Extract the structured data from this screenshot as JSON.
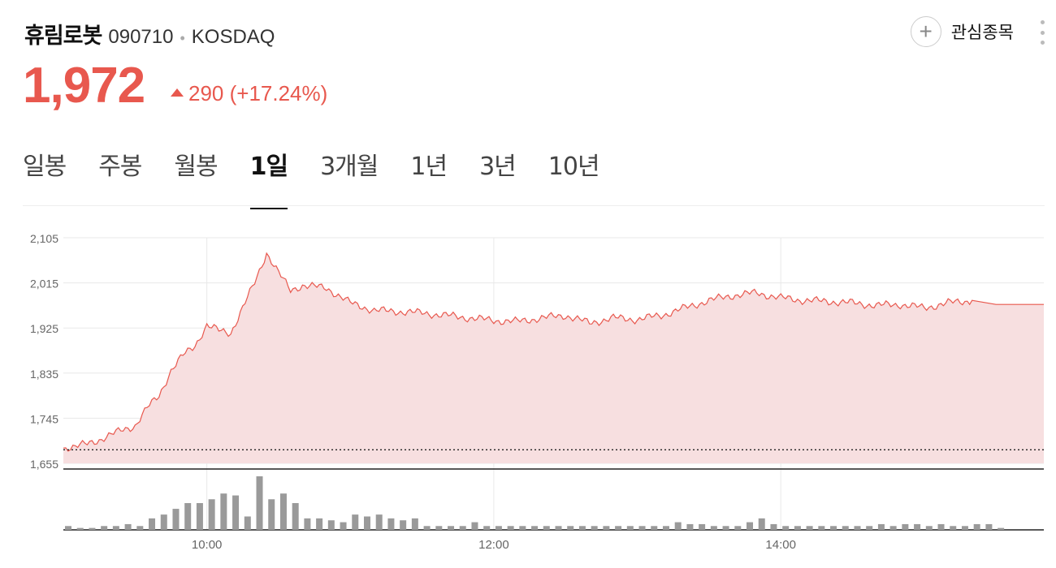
{
  "stock": {
    "name": "휴림로봇",
    "code": "090710",
    "market": "KOSDAQ",
    "price": "1,972",
    "change": "290 (+17.24%)",
    "watch_label": "관심종목"
  },
  "tabs": [
    {
      "label": "일봉",
      "active": false
    },
    {
      "label": "주봉",
      "active": false
    },
    {
      "label": "월봉",
      "active": false
    },
    {
      "label": "1일",
      "active": true
    },
    {
      "label": "3개월",
      "active": false
    },
    {
      "label": "1년",
      "active": false
    },
    {
      "label": "3년",
      "active": false
    },
    {
      "label": "10년",
      "active": false
    }
  ],
  "colors": {
    "up": "#e8584e",
    "fill": "#f7dfe0",
    "grid": "#e8e8e8",
    "volume": "#9a9a9a"
  },
  "chart_data": {
    "type": "area",
    "yticks": [
      "2,105",
      "2,015",
      "1,925",
      "1,835",
      "1,745",
      "1,655"
    ],
    "ylim": [
      1655,
      2105
    ],
    "xlim": [
      "09:00",
      "15:50"
    ],
    "xticks": [
      "10:00",
      "12:00",
      "14:00"
    ],
    "previous_close": 1682,
    "series": [
      {
        "x": [
          "09:00",
          "09:05",
          "09:10",
          "09:15",
          "09:20",
          "09:25",
          "09:30",
          "09:35",
          "09:40",
          "09:45",
          "09:50",
          "09:55",
          "10:00",
          "10:05",
          "10:10",
          "10:15",
          "10:20",
          "10:25",
          "10:30",
          "10:35",
          "10:40",
          "10:50",
          "11:00",
          "11:10",
          "11:20",
          "11:30",
          "11:40",
          "11:50",
          "12:00",
          "12:10",
          "12:20",
          "12:30",
          "12:40",
          "12:50",
          "13:00",
          "13:10",
          "13:20",
          "13:30",
          "13:40",
          "13:50",
          "14:00",
          "14:10",
          "14:20",
          "14:30",
          "14:40",
          "14:50",
          "15:00",
          "15:10",
          "15:20",
          "15:30",
          "15:40",
          "15:50"
        ],
        "values": [
          1686,
          1688,
          1694,
          1702,
          1712,
          1722,
          1730,
          1765,
          1790,
          1840,
          1870,
          1890,
          1930,
          1920,
          1915,
          1965,
          2015,
          2075,
          2035,
          2000,
          2010,
          2005,
          1975,
          1960,
          1958,
          1955,
          1950,
          1945,
          1940,
          1938,
          1945,
          1950,
          1935,
          1945,
          1942,
          1950,
          1965,
          1980,
          1990,
          1995,
          1985,
          1980,
          1978,
          1975,
          1970,
          1972,
          1965,
          1975,
          1980,
          1972,
          1972,
          1972
        ]
      }
    ],
    "volume": {
      "x": [
        "09:00",
        "09:05",
        "09:10",
        "09:15",
        "09:20",
        "09:25",
        "09:30",
        "09:35",
        "09:40",
        "09:45",
        "09:50",
        "09:55",
        "10:00",
        "10:05",
        "10:10",
        "10:15",
        "10:20",
        "10:25",
        "10:30",
        "10:35",
        "10:40",
        "10:45",
        "10:50",
        "10:55",
        "11:00",
        "11:05",
        "11:10",
        "11:15",
        "11:20",
        "11:25",
        "11:30",
        "11:35",
        "11:40",
        "11:45",
        "11:50",
        "11:55",
        "12:00",
        "12:05",
        "12:10",
        "12:15",
        "12:20",
        "12:25",
        "12:30",
        "12:35",
        "12:40",
        "12:45",
        "12:50",
        "12:55",
        "13:00",
        "13:05",
        "13:10",
        "13:15",
        "13:20",
        "13:25",
        "13:30",
        "13:35",
        "13:40",
        "13:45",
        "13:50",
        "13:55",
        "14:00",
        "14:05",
        "14:10",
        "14:15",
        "14:20",
        "14:25",
        "14:30",
        "14:35",
        "14:40",
        "14:45",
        "14:50",
        "14:55",
        "15:00",
        "15:05",
        "15:10",
        "15:15",
        "15:20",
        "15:25",
        "15:30"
      ],
      "values": [
        2,
        1,
        1,
        2,
        2,
        3,
        2,
        6,
        8,
        11,
        14,
        14,
        16,
        19,
        18,
        7,
        28,
        16,
        19,
        14,
        6,
        6,
        5,
        4,
        8,
        7,
        8,
        6,
        5,
        6,
        2,
        2,
        2,
        2,
        4,
        2,
        2,
        2,
        2,
        2,
        2,
        2,
        2,
        2,
        2,
        2,
        2,
        2,
        2,
        2,
        2,
        4,
        3,
        3,
        2,
        2,
        2,
        4,
        6,
        3,
        2,
        2,
        2,
        2,
        2,
        2,
        2,
        2,
        3,
        2,
        3,
        3,
        2,
        3,
        2,
        2,
        3,
        3,
        1
      ]
    }
  }
}
